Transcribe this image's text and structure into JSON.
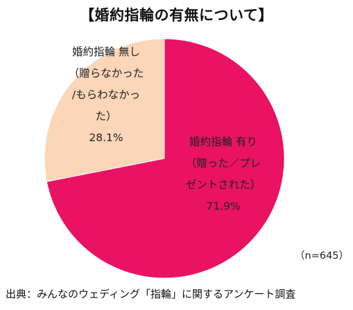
{
  "chart_data": {
    "type": "pie",
    "title": "【婚約指輪の有無について】",
    "slices": [
      {
        "name_lines": [
          "婚約指輪 有り",
          "（贈った／プレ",
          "ゼントされた）"
        ],
        "value": 71.9,
        "value_label": "71.9%",
        "color": "#e91263"
      },
      {
        "name_lines": [
          "婚約指輪 無し",
          "（贈らなかった",
          "/もらわなかっ",
          "た）"
        ],
        "value": 28.1,
        "value_label": "28.1%",
        "color": "#fbd6b9"
      }
    ],
    "start_angle_deg": 0,
    "direction": "clockwise",
    "legend": "none",
    "sample_note": "（n=645）"
  },
  "footer": {
    "source": "出典：みんなのウェディング「指輪」に関するアンケート調査"
  }
}
